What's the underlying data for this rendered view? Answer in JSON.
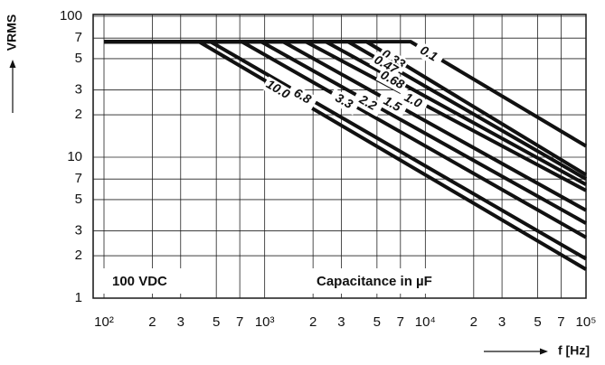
{
  "chart_data": {
    "type": "line",
    "y_label": "VRMS",
    "x_label": "f [Hz]",
    "annotations": [
      "100 VDC",
      "Capacitance in µF"
    ],
    "log_x": true,
    "log_y": true,
    "grid": true,
    "color": "#111111",
    "xlim": [
      100,
      100000
    ],
    "ylim": [
      1,
      100
    ],
    "xticks": [
      {
        "value": 100,
        "label": "10²"
      },
      {
        "value": 200,
        "label": "2"
      },
      {
        "value": 300,
        "label": "3"
      },
      {
        "value": 500,
        "label": "5"
      },
      {
        "value": 700,
        "label": "7"
      },
      {
        "value": 1000,
        "label": "10³"
      },
      {
        "value": 2000,
        "label": "2"
      },
      {
        "value": 3000,
        "label": "3"
      },
      {
        "value": 5000,
        "label": "5"
      },
      {
        "value": 7000,
        "label": "7"
      },
      {
        "value": 10000,
        "label": "10⁴"
      },
      {
        "value": 20000,
        "label": "2"
      },
      {
        "value": 30000,
        "label": "3"
      },
      {
        "value": 50000,
        "label": "5"
      },
      {
        "value": 70000,
        "label": "7"
      },
      {
        "value": 100000,
        "label": "10⁵"
      }
    ],
    "yticks": [
      1,
      2,
      3,
      5,
      {
        "value": 7,
        "label": "7"
      },
      10,
      {
        "value": 20,
        "label": "2"
      },
      {
        "value": 30,
        "label": "3"
      },
      {
        "value": 50,
        "label": "5"
      },
      {
        "value": 70,
        "label": "7"
      },
      100
    ],
    "series": [
      {
        "name": "0.1",
        "x": [
          100,
          8100,
          100000
        ],
        "values": [
          66,
          66,
          12
        ]
      },
      {
        "name": "0.33",
        "x": [
          100,
          4300,
          100000
        ],
        "values": [
          66,
          66,
          7.5
        ]
      },
      {
        "name": "0.47",
        "x": [
          100,
          3300,
          100000
        ],
        "values": [
          66,
          66,
          7
        ]
      },
      {
        "name": "0.68",
        "x": [
          100,
          2400,
          100000
        ],
        "values": [
          66,
          66,
          6.4
        ]
      },
      {
        "name": "1.0",
        "x": [
          100,
          1800,
          100000
        ],
        "values": [
          66,
          66,
          5.8
        ]
      },
      {
        "name": "1.5",
        "x": [
          100,
          1300,
          100000
        ],
        "values": [
          66,
          66,
          4.2
        ]
      },
      {
        "name": "2.2",
        "x": [
          100,
          950,
          100000
        ],
        "values": [
          66,
          66,
          3.4
        ]
      },
      {
        "name": "3.3",
        "x": [
          100,
          720,
          100000
        ],
        "values": [
          66,
          66,
          2.7
        ]
      },
      {
        "name": "6.8",
        "x": [
          100,
          460,
          100000
        ],
        "values": [
          66,
          66,
          1.9
        ]
      },
      {
        "name": "10.0",
        "x": [
          100,
          390,
          100000
        ],
        "values": [
          66,
          66,
          1.6
        ]
      }
    ]
  }
}
